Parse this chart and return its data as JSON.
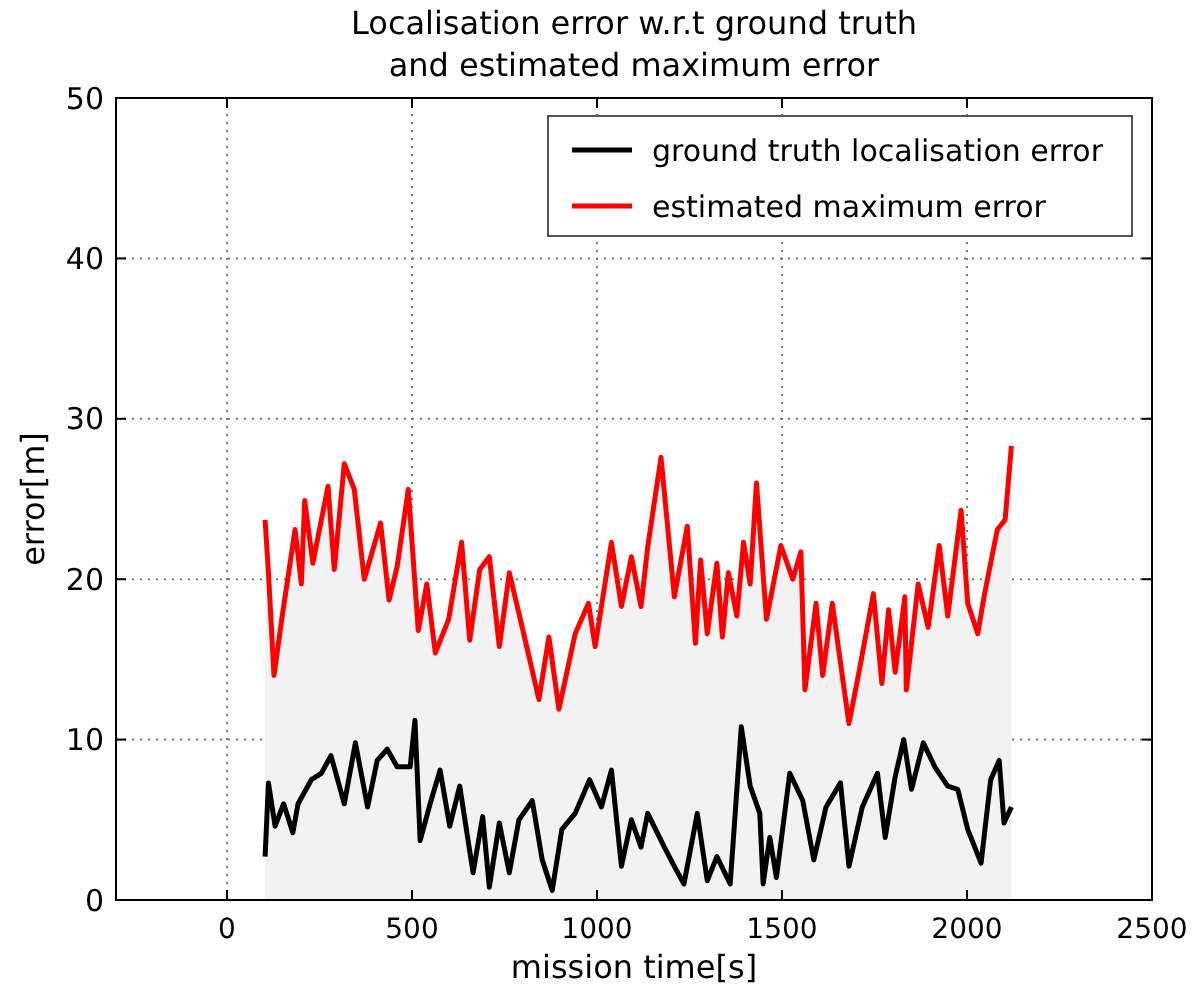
{
  "chart_data": {
    "type": "line",
    "title": "Localisation error w.r.t ground truth\nand estimated maximum error",
    "xlabel": "mission time[s]",
    "ylabel": "error[m]",
    "xlim": [
      -300,
      2500
    ],
    "xticks": [
      0,
      500,
      1000,
      1500,
      2000,
      2500
    ],
    "ylim": [
      0,
      50
    ],
    "yticks": [
      0,
      10,
      20,
      30,
      40,
      50
    ],
    "grid": true,
    "legend": "top right",
    "series": [
      {
        "name": "ground truth localisation error",
        "color": "#000000",
        "x": [
          103,
          112,
          130,
          153,
          178,
          192,
          228,
          255,
          281,
          317,
          347,
          380,
          406,
          433,
          460,
          495,
          508,
          522,
          549,
          576,
          602,
          629,
          665,
          691,
          709,
          736,
          763,
          789,
          825,
          852,
          879,
          905,
          941,
          980,
          1012,
          1039,
          1066,
          1093,
          1119,
          1137,
          1182,
          1209,
          1235,
          1271,
          1298,
          1324,
          1360,
          1390,
          1414,
          1440,
          1449,
          1467,
          1485,
          1521,
          1556,
          1586,
          1619,
          1658,
          1681,
          1717,
          1758,
          1779,
          1806,
          1829,
          1850,
          1882,
          1913,
          1948,
          1975,
          2002,
          2038,
          2064,
          2087,
          2100,
          2120
        ],
        "values": [
          2.7,
          7.3,
          4.6,
          6.0,
          4.2,
          6.0,
          7.5,
          7.9,
          9.0,
          6.0,
          9.8,
          5.8,
          8.7,
          9.4,
          8.3,
          8.3,
          11.2,
          3.7,
          6.0,
          8.1,
          4.6,
          7.1,
          1.7,
          5.2,
          0.8,
          4.8,
          1.7,
          5.0,
          6.2,
          2.5,
          0.6,
          4.4,
          5.4,
          7.5,
          5.8,
          8.1,
          2.1,
          5.0,
          3.3,
          5.4,
          3.3,
          2.1,
          1.0,
          5.4,
          1.2,
          2.7,
          1.0,
          10.8,
          7.1,
          5.4,
          1.0,
          3.9,
          1.4,
          7.9,
          6.2,
          2.5,
          5.8,
          7.3,
          2.1,
          5.8,
          7.9,
          3.9,
          7.7,
          10.0,
          6.9,
          9.8,
          8.3,
          7.1,
          6.9,
          4.4,
          2.3,
          7.5,
          8.7,
          4.8,
          5.8
        ]
      },
      {
        "name": "estimated maximum error",
        "type": "area",
        "color": "#ff0000",
        "x": [
          103,
          112,
          127,
          148,
          184,
          201,
          210,
          232,
          273,
          290,
          317,
          344,
          371,
          415,
          438,
          460,
          490,
          517,
          540,
          563,
          599,
          634,
          656,
          683,
          709,
          736,
          763,
          798,
          843,
          870,
          897,
          941,
          977,
          995,
          1039,
          1066,
          1093,
          1119,
          1137,
          1173,
          1209,
          1244,
          1266,
          1280,
          1298,
          1324,
          1339,
          1355,
          1378,
          1396,
          1414,
          1431,
          1458,
          1497,
          1529,
          1551,
          1562,
          1592,
          1610,
          1636,
          1658,
          1681,
          1708,
          1747,
          1770,
          1788,
          1806,
          1832,
          1836,
          1868,
          1895,
          1925,
          1948,
          1984,
          2002,
          2029,
          2046,
          2082,
          2103,
          2120
        ],
        "values": [
          23.7,
          20.4,
          14.0,
          17.5,
          23.1,
          19.7,
          24.9,
          21.0,
          25.8,
          20.6,
          27.2,
          25.6,
          20.0,
          23.5,
          18.7,
          20.8,
          25.6,
          16.8,
          19.7,
          15.4,
          17.5,
          22.3,
          16.2,
          20.6,
          21.4,
          15.8,
          20.4,
          17.0,
          12.5,
          16.4,
          11.9,
          16.6,
          18.5,
          15.8,
          22.3,
          18.3,
          21.4,
          18.3,
          22.0,
          27.6,
          18.9,
          23.3,
          16.0,
          21.2,
          16.6,
          21.0,
          16.4,
          20.4,
          17.7,
          22.3,
          19.7,
          26.0,
          17.5,
          22.1,
          20.0,
          21.7,
          13.1,
          18.5,
          14.0,
          18.5,
          14.8,
          11.0,
          14.2,
          19.1,
          13.5,
          18.1,
          14.2,
          18.9,
          13.1,
          19.7,
          17.0,
          22.1,
          17.7,
          24.3,
          18.5,
          16.6,
          18.9,
          23.1,
          23.7,
          28.3
        ]
      }
    ]
  }
}
